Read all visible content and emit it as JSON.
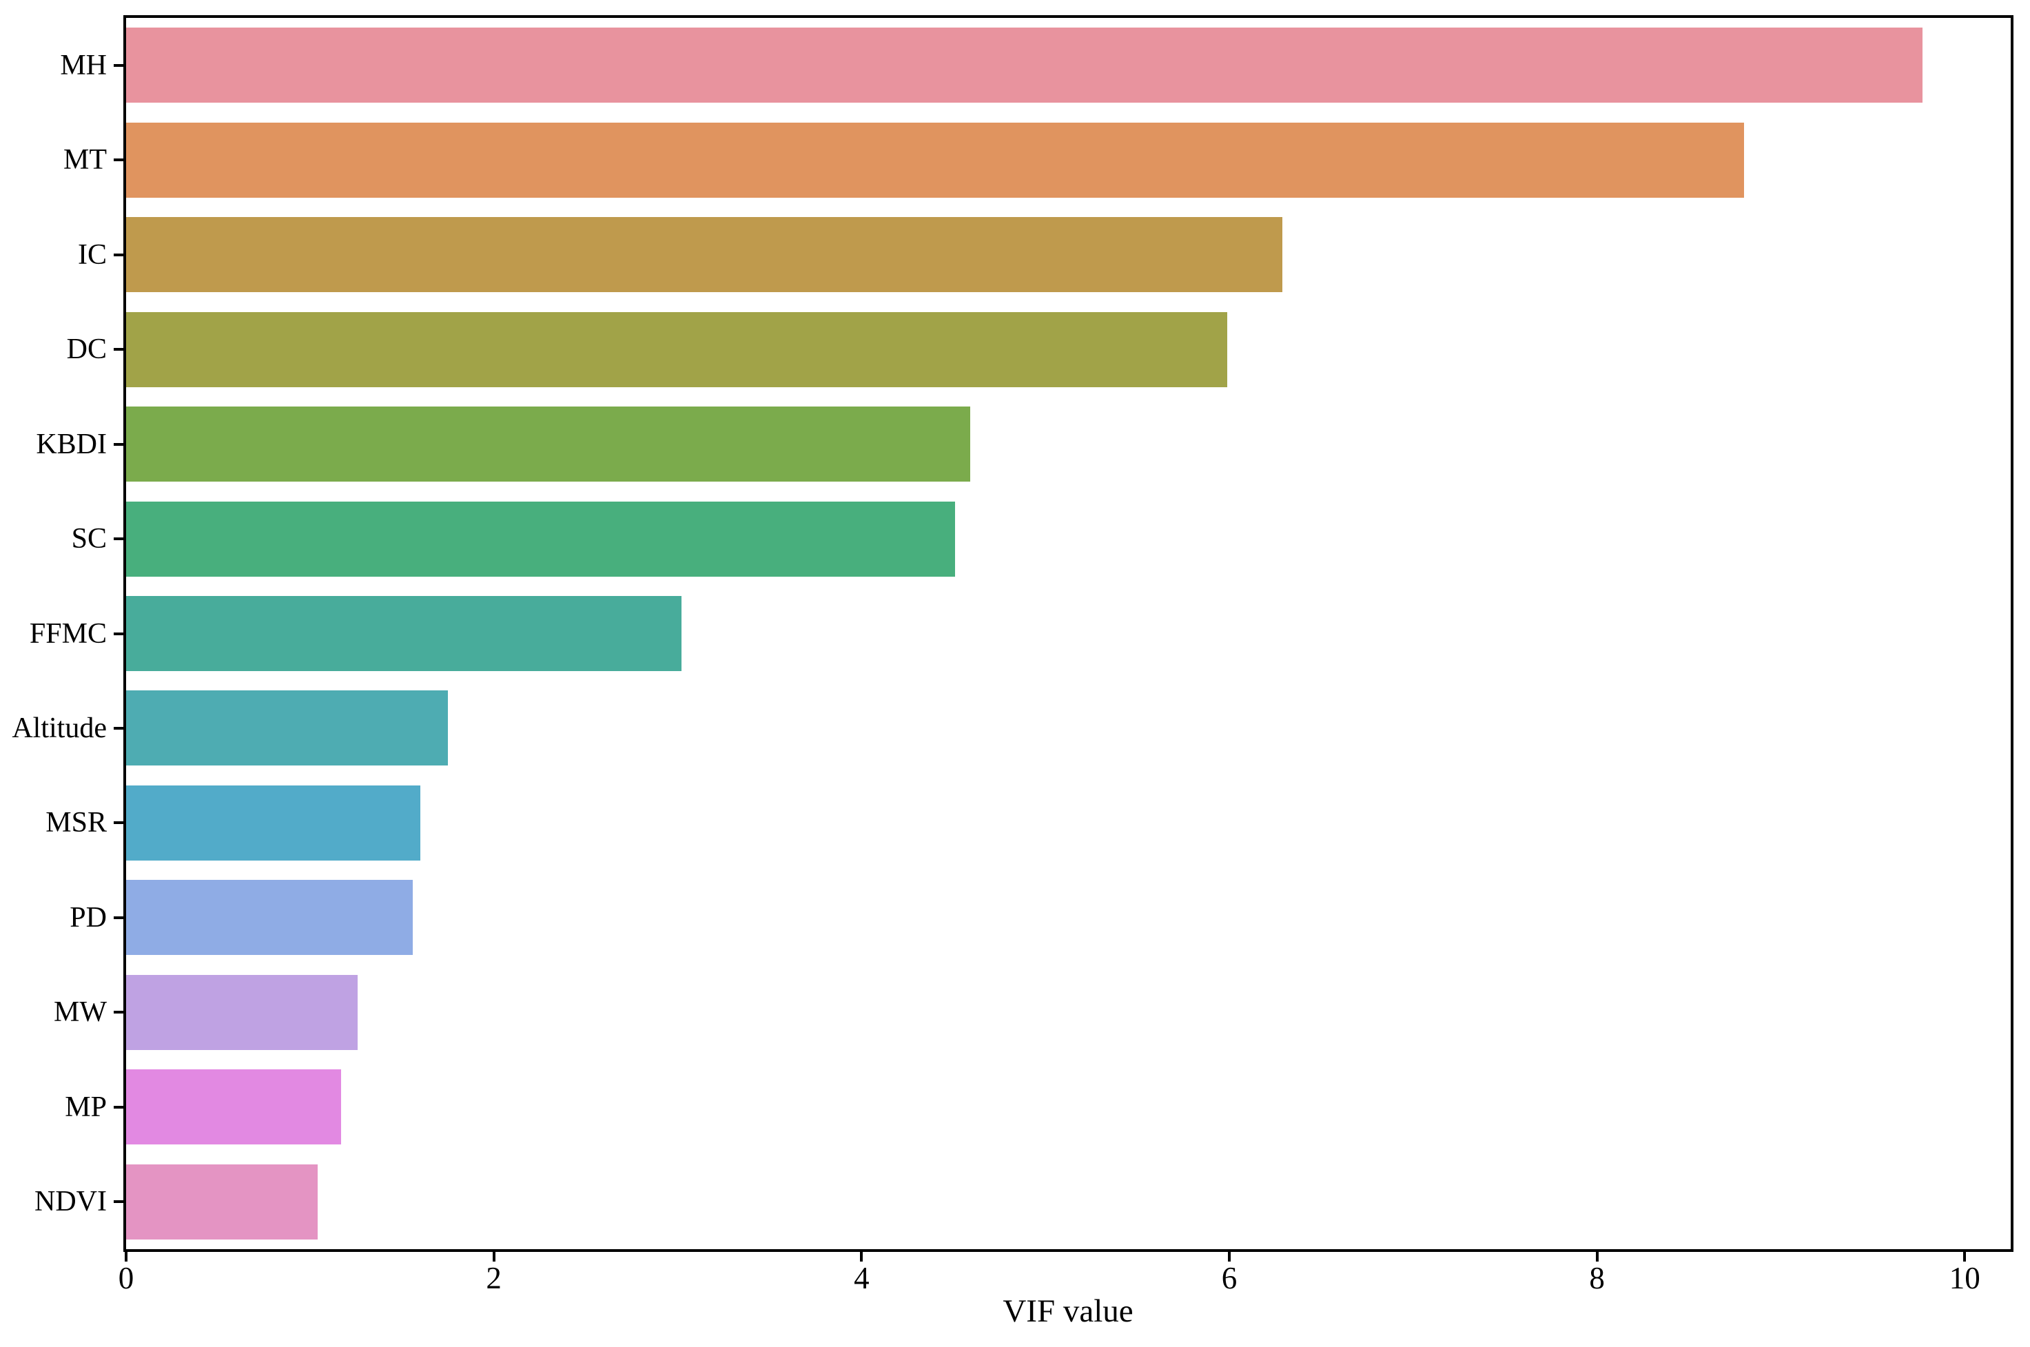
{
  "figure": {
    "background_color": "#ffffff",
    "spine_color": "#000000",
    "text_color": "#000000"
  },
  "chart_data": {
    "type": "bar",
    "orientation": "horizontal",
    "title": "",
    "xlabel": "VIF value",
    "ylabel": "",
    "categories": [
      "MH",
      "MT",
      "IC",
      "DC",
      "KBDI",
      "SC",
      "FFMC",
      "Altitude",
      "MSR",
      "PD",
      "MW",
      "MP",
      "NDVI"
    ],
    "values": [
      9.77,
      8.8,
      6.29,
      5.99,
      4.59,
      4.51,
      3.02,
      1.75,
      1.6,
      1.56,
      1.26,
      1.17,
      1.04
    ],
    "colors": [
      "#E8939E",
      "#E0945F",
      "#BF9A4D",
      "#A1A348",
      "#7BAB4C",
      "#48AF7D",
      "#48AC9B",
      "#4EACB2",
      "#52ABC9",
      "#8FACE5",
      "#BFA2E3",
      "#E289E2",
      "#E494C3"
    ],
    "xlim": [
      0,
      10.25
    ],
    "x_ticks": [
      0,
      2,
      4,
      6,
      8,
      10
    ],
    "x_tick_labels": [
      "0",
      "2",
      "4",
      "6",
      "8",
      "10"
    ],
    "grid": false,
    "legend": null
  }
}
